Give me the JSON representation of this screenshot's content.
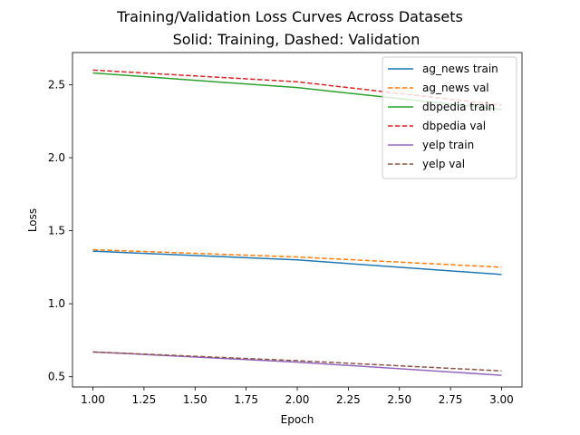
{
  "chart_data": {
    "type": "line",
    "title": "Training/Validation Loss Curves Across Datasets",
    "subtitle": "Solid: Training, Dashed: Validation",
    "xlabel": "Epoch",
    "ylabel": "Loss",
    "xlim": [
      0.9,
      3.1
    ],
    "ylim": [
      0.43,
      2.72
    ],
    "xticks": [
      1.0,
      1.25,
      1.5,
      1.75,
      2.0,
      2.25,
      2.5,
      2.75,
      3.0
    ],
    "xtick_labels": [
      "1.00",
      "1.25",
      "1.50",
      "1.75",
      "2.00",
      "2.25",
      "2.50",
      "2.75",
      "3.00"
    ],
    "yticks": [
      0.5,
      1.0,
      1.5,
      2.0,
      2.5
    ],
    "ytick_labels": [
      "0.5",
      "1.0",
      "1.5",
      "2.0",
      "2.5"
    ],
    "grid": false,
    "legend_position": "top-right",
    "x": [
      1,
      2,
      3
    ],
    "series": [
      {
        "name": "ag_news train",
        "values": [
          1.36,
          1.3,
          1.2
        ],
        "color": "#1f77b4",
        "style": "solid"
      },
      {
        "name": "ag_news val",
        "values": [
          1.37,
          1.32,
          1.25
        ],
        "color": "#ff7f0e",
        "style": "dashed"
      },
      {
        "name": "dbpedia train",
        "values": [
          2.58,
          2.48,
          2.33
        ],
        "color": "#2ca02c",
        "style": "solid"
      },
      {
        "name": "dbpedia val",
        "values": [
          2.6,
          2.52,
          2.36
        ],
        "color": "#d62728",
        "style": "dashed"
      },
      {
        "name": "yelp train",
        "values": [
          0.67,
          0.6,
          0.51
        ],
        "color": "#9467bd",
        "style": "solid"
      },
      {
        "name": "yelp val",
        "values": [
          0.67,
          0.61,
          0.54
        ],
        "color": "#8c564b",
        "style": "dashed"
      }
    ]
  }
}
